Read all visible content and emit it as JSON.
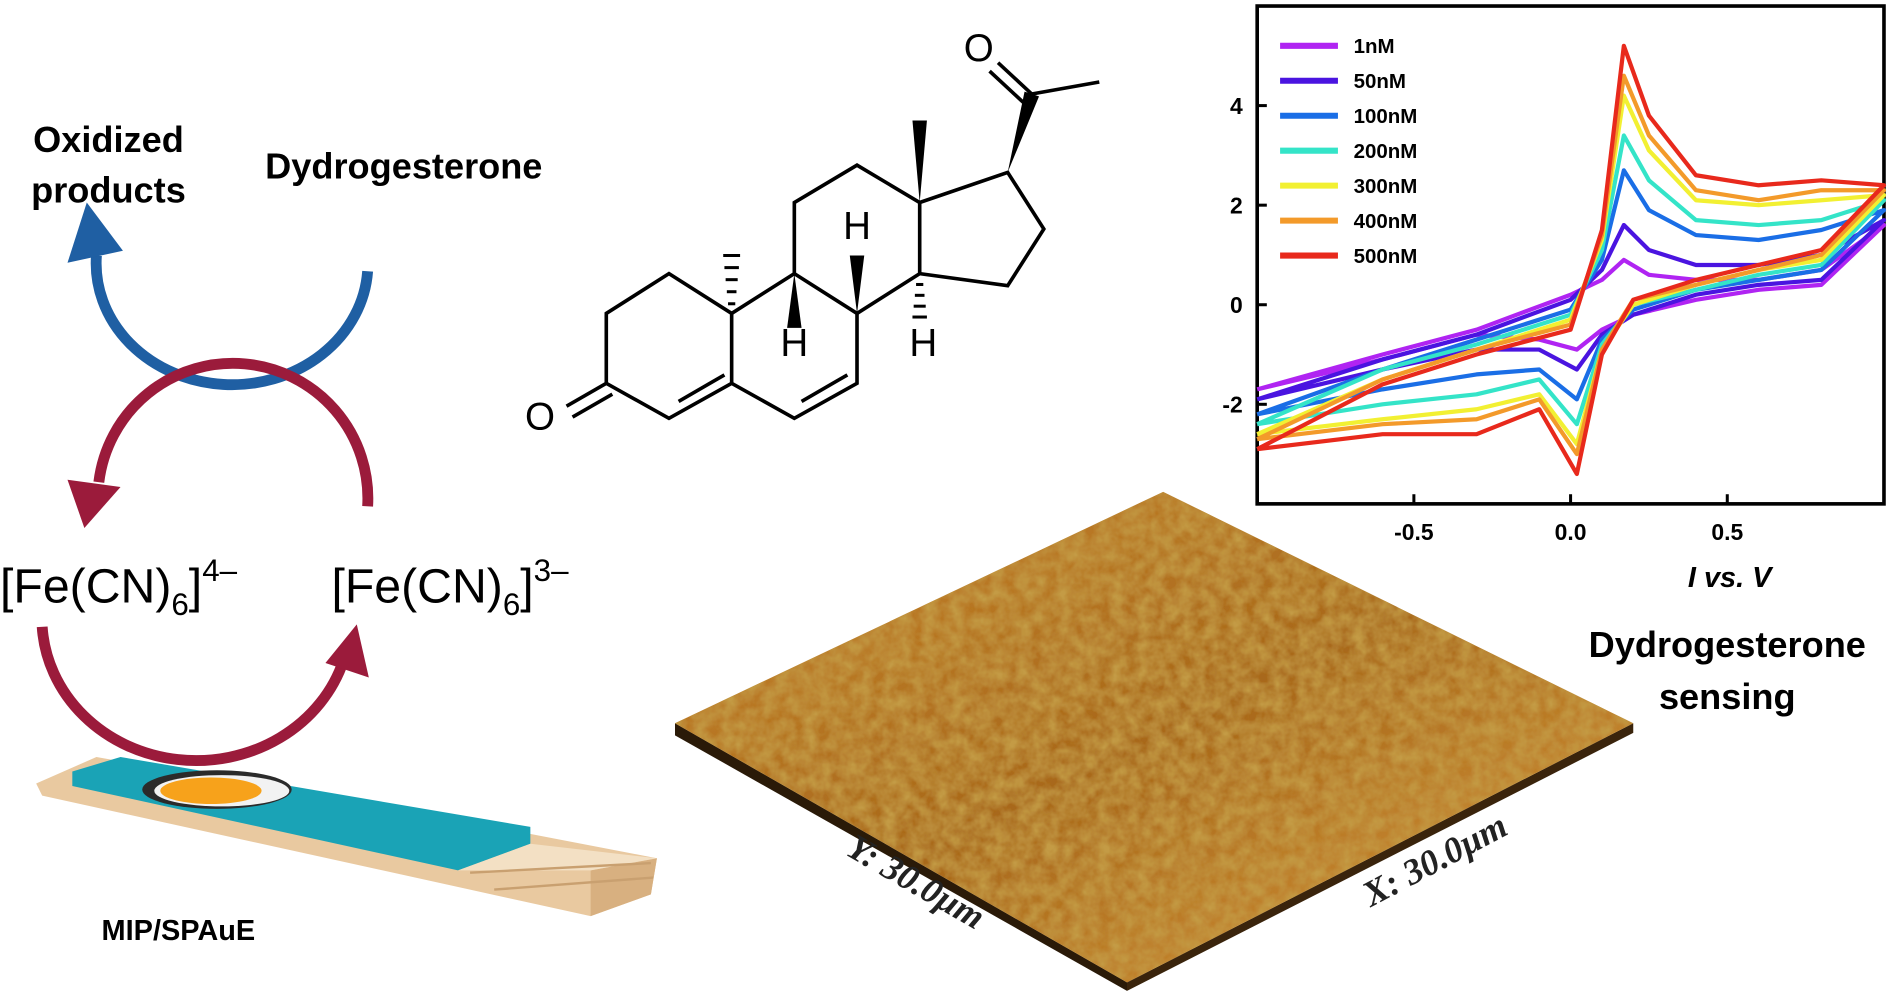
{
  "cycle": {
    "oxidized_lines": [
      "Oxidized",
      "products"
    ],
    "analyte": "Dydrogesterone",
    "reduced_ion": {
      "base": "[Fe(CN)",
      "sub": "6",
      "close": "]",
      "sup": "4–"
    },
    "oxidized_ion": {
      "base": "[Fe(CN)",
      "sub": "6",
      "close": "]",
      "sup": "3–"
    }
  },
  "electrode_label": "MIP/SPAuE",
  "molecule": {
    "atoms": [
      "O",
      "O",
      "H",
      "H",
      "H"
    ]
  },
  "afm": {
    "y_label": "Y: 30.0µm",
    "x_label": "X: 30.0µm"
  },
  "caption_lines": [
    "Dydrogesterone",
    "sensing"
  ],
  "chart_data": {
    "type": "line",
    "xlabel": "I vs. V",
    "x": [
      -1.0,
      -0.6,
      -0.3,
      0.0,
      0.1,
      0.17,
      0.25,
      0.4,
      0.6,
      0.8,
      1.0,
      0.8,
      0.6,
      0.4,
      0.2,
      0.1,
      0.02,
      -0.1,
      -0.3,
      -0.6,
      -1.0
    ],
    "series": [
      {
        "name": "1nM",
        "color": "#b024f2",
        "values": [
          -1.7,
          -1.0,
          -0.5,
          0.2,
          0.5,
          0.9,
          0.6,
          0.5,
          0.5,
          0.7,
          1.6,
          0.4,
          0.3,
          0.1,
          -0.2,
          -0.5,
          -0.9,
          -0.7,
          -0.6,
          -1.1,
          -1.7
        ]
      },
      {
        "name": "50nM",
        "color": "#4a14e0",
        "values": [
          -1.9,
          -1.1,
          -0.6,
          0.1,
          0.7,
          1.6,
          1.1,
          0.8,
          0.8,
          1.0,
          1.7,
          0.5,
          0.4,
          0.2,
          -0.2,
          -0.6,
          -1.3,
          -0.9,
          -0.9,
          -1.3,
          -1.9
        ]
      },
      {
        "name": "100nM",
        "color": "#1a6ee6",
        "values": [
          -2.2,
          -1.3,
          -0.7,
          -0.1,
          0.9,
          2.7,
          1.9,
          1.4,
          1.3,
          1.5,
          1.9,
          0.7,
          0.5,
          0.3,
          -0.1,
          -0.7,
          -1.9,
          -1.3,
          -1.4,
          -1.7,
          -2.2
        ]
      },
      {
        "name": "200nM",
        "color": "#34e4c8",
        "values": [
          -2.4,
          -1.3,
          -0.8,
          -0.2,
          1.1,
          3.4,
          2.5,
          1.7,
          1.6,
          1.7,
          2.1,
          0.8,
          0.6,
          0.3,
          0.0,
          -0.8,
          -2.4,
          -1.5,
          -1.8,
          -2.0,
          -2.4
        ]
      },
      {
        "name": "300nM",
        "color": "#f2f032",
        "values": [
          -2.6,
          -1.5,
          -0.9,
          -0.3,
          1.3,
          4.2,
          3.1,
          2.1,
          2.0,
          2.1,
          2.2,
          0.9,
          0.7,
          0.4,
          0.0,
          -0.9,
          -2.8,
          -1.8,
          -2.1,
          -2.3,
          -2.6
        ]
      },
      {
        "name": "400nM",
        "color": "#f39a2a",
        "values": [
          -2.7,
          -1.5,
          -0.9,
          -0.4,
          1.4,
          4.6,
          3.4,
          2.3,
          2.1,
          2.3,
          2.3,
          1.0,
          0.7,
          0.4,
          0.1,
          -0.9,
          -3.0,
          -1.9,
          -2.3,
          -2.4,
          -2.7
        ]
      },
      {
        "name": "500nM",
        "color": "#e8291c",
        "values": [
          -2.9,
          -1.6,
          -1.0,
          -0.5,
          1.5,
          5.2,
          3.8,
          2.6,
          2.4,
          2.5,
          2.4,
          1.1,
          0.8,
          0.5,
          0.1,
          -1.0,
          -3.4,
          -2.1,
          -2.6,
          -2.6,
          -2.9
        ]
      }
    ],
    "xlim": [
      -1,
      1
    ],
    "ylim": [
      -4,
      6
    ],
    "xticks": [
      -0.5,
      {
        "value": 0,
        "label": "0.0"
      },
      0.5
    ],
    "yticks": [
      -2,
      0,
      2,
      4
    ],
    "legend": "upper left"
  }
}
